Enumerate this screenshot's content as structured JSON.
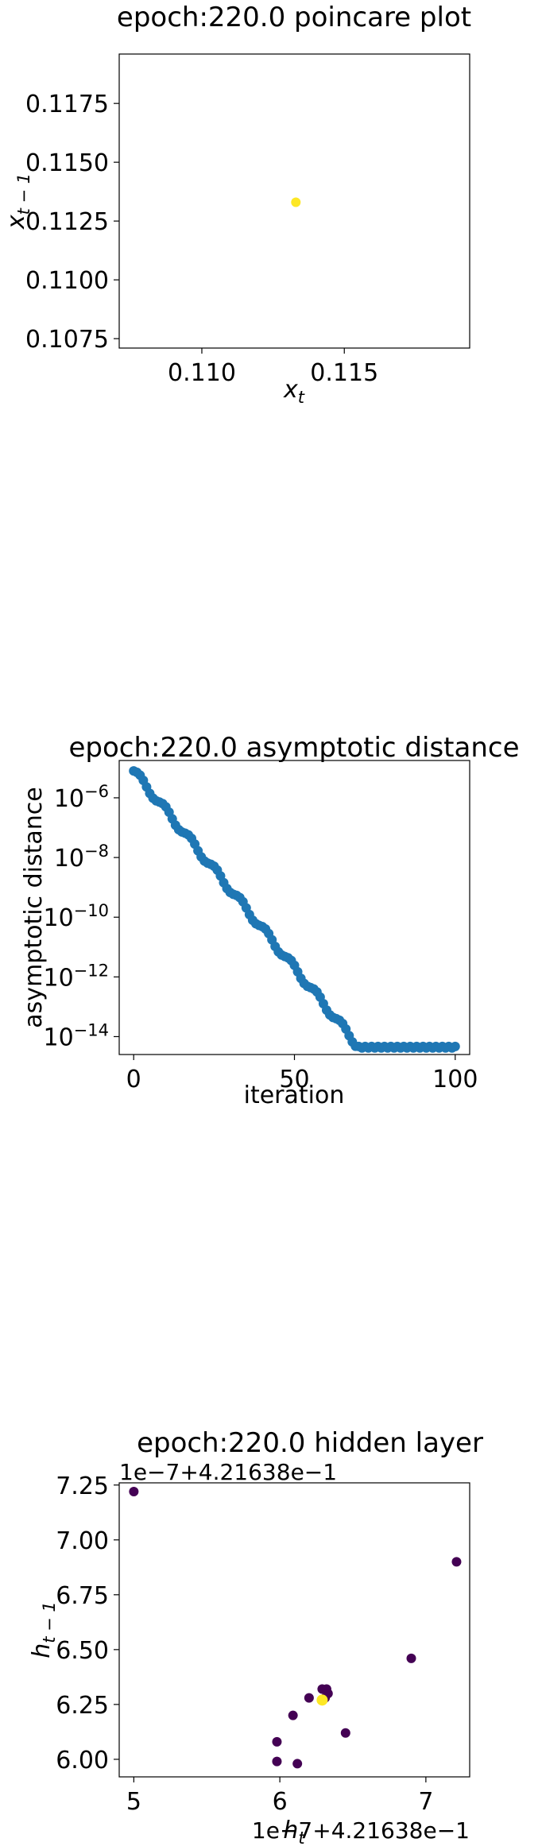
{
  "chart_data": [
    {
      "type": "scatter",
      "title": "epoch:220.0 poincare plot",
      "xlabel": "x_t",
      "ylabel": "x_{t-1}",
      "xlim": [
        0.1071,
        0.1194
      ],
      "ylim": [
        0.1071,
        0.1196
      ],
      "xticks": [
        0.11,
        0.115
      ],
      "xtick_labels": [
        "0.110",
        "0.115"
      ],
      "yticks": [
        0.1075,
        0.11,
        0.1125,
        0.115,
        0.1175
      ],
      "ytick_labels": [
        "0.1075",
        "0.1100",
        "0.1125",
        "0.1150",
        "0.1175"
      ],
      "grid": false,
      "colors": {
        "point": "#fde725"
      },
      "points": [
        {
          "x": 0.1133,
          "y": 0.1133
        }
      ]
    },
    {
      "type": "scatter",
      "title": "epoch:220.0 asymptotic distance",
      "xlabel": "iteration",
      "ylabel": "asymptotic distance",
      "yscale": "log",
      "xlim": [
        -4.5,
        104.5
      ],
      "ylim_log10": [
        -14.6,
        -4.75
      ],
      "xticks": [
        0,
        50,
        100
      ],
      "xtick_labels": [
        "0",
        "50",
        "100"
      ],
      "yticks_log10": [
        -6,
        -8,
        -10,
        -12,
        -14
      ],
      "grid": false,
      "colors": {
        "point": "#1f77b4"
      },
      "decay": {
        "start_log10": -5.1,
        "slope_per_iter": -0.132,
        "floor_log10": -14.35,
        "floor_start": 70,
        "n": 101
      }
    },
    {
      "type": "scatter",
      "title": "epoch:220.0 hidden layer",
      "xlabel": "h_t",
      "ylabel": "h_{t-1}",
      "x_offset_text": "1e−7+4.21638e−1",
      "y_offset_text": "1e−7+4.21638e−1",
      "xlim": [
        4.9,
        7.3
      ],
      "ylim": [
        5.92,
        7.26
      ],
      "xticks": [
        5,
        6,
        7
      ],
      "xtick_labels": [
        "5",
        "6",
        "7"
      ],
      "yticks": [
        6.0,
        6.25,
        6.5,
        6.75,
        7.0,
        7.25
      ],
      "ytick_labels": [
        "6.00",
        "6.25",
        "6.50",
        "6.75",
        "7.00",
        "7.25"
      ],
      "grid": false,
      "colors": {
        "early": "#440154",
        "late": "#fde725"
      },
      "points": [
        {
          "x": 5.0,
          "y": 7.22,
          "c": "early"
        },
        {
          "x": 7.21,
          "y": 6.9,
          "c": "early"
        },
        {
          "x": 6.9,
          "y": 6.46,
          "c": "early"
        },
        {
          "x": 6.45,
          "y": 6.12,
          "c": "early"
        },
        {
          "x": 6.2,
          "y": 6.28,
          "c": "early"
        },
        {
          "x": 6.09,
          "y": 6.2,
          "c": "early"
        },
        {
          "x": 5.98,
          "y": 6.08,
          "c": "early"
        },
        {
          "x": 5.98,
          "y": 5.99,
          "c": "early"
        },
        {
          "x": 6.12,
          "y": 5.98,
          "c": "early"
        },
        {
          "x": 6.29,
          "y": 6.32,
          "c": "early"
        },
        {
          "x": 6.32,
          "y": 6.32,
          "c": "early"
        },
        {
          "x": 6.33,
          "y": 6.3,
          "c": "early"
        },
        {
          "x": 6.31,
          "y": 6.28,
          "c": "early"
        },
        {
          "x": 6.29,
          "y": 6.27,
          "c": "late"
        }
      ]
    }
  ]
}
